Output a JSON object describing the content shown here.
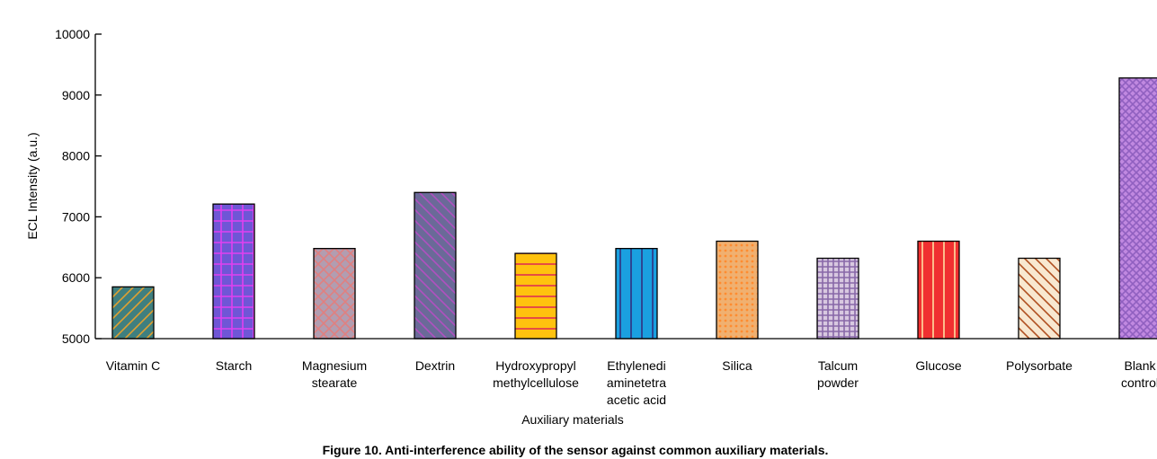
{
  "chart_data": {
    "type": "bar",
    "title": "",
    "xlabel": "Auxiliary materials",
    "ylabel": "ECL Intensity (a.u.)",
    "ylim": [
      5000,
      10000
    ],
    "yticks": [
      5000,
      6000,
      7000,
      8000,
      9000,
      10000
    ],
    "grid": false,
    "categories": [
      [
        "Vitamin C"
      ],
      [
        "Starch"
      ],
      [
        "Magnesium",
        "stearate"
      ],
      [
        "Dextrin"
      ],
      [
        "Hydroxypropyl",
        "methylcellulose"
      ],
      [
        "Ethylenedi",
        "aminetetra",
        "acetic acid"
      ],
      [
        "Silica"
      ],
      [
        "Talcum",
        "powder"
      ],
      [
        "Glucose"
      ],
      [
        "Polysorbate"
      ],
      [
        "Blank",
        "control"
      ]
    ],
    "values": [
      5850,
      7210,
      6480,
      7400,
      6400,
      6480,
      6600,
      6320,
      6600,
      6320,
      9280
    ],
    "bar_styles": [
      {
        "fill": "#3f7f7f",
        "line": "#e0a030",
        "pattern": "diag-up"
      },
      {
        "fill": "#6f56d6",
        "line": "#e040f0",
        "pattern": "grid"
      },
      {
        "fill": "#b29db0",
        "line": "#e08080",
        "pattern": "diamond"
      },
      {
        "fill": "#6a6a98",
        "line": "#b050c0",
        "pattern": "diag-down"
      },
      {
        "fill": "#ffc20e",
        "line": "#e03050",
        "pattern": "horizontal"
      },
      {
        "fill": "#1aa0e0",
        "line": "#303080",
        "pattern": "vertical"
      },
      {
        "fill": "#f0b070",
        "line": "#ff8c30",
        "pattern": "dots"
      },
      {
        "fill": "#d8c8e0",
        "line": "#8868a8",
        "pattern": "fine-grid"
      },
      {
        "fill": "#f03030",
        "line": "#ffe0a0",
        "pattern": "vertical"
      },
      {
        "fill": "#f8e8d0",
        "line": "#b05020",
        "pattern": "diag-down"
      },
      {
        "fill": "#c088e0",
        "line": "#9060c0",
        "pattern": "fine-diamond"
      }
    ]
  },
  "caption": "Figure 10. Anti-interference ability of the sensor against common auxiliary materials."
}
